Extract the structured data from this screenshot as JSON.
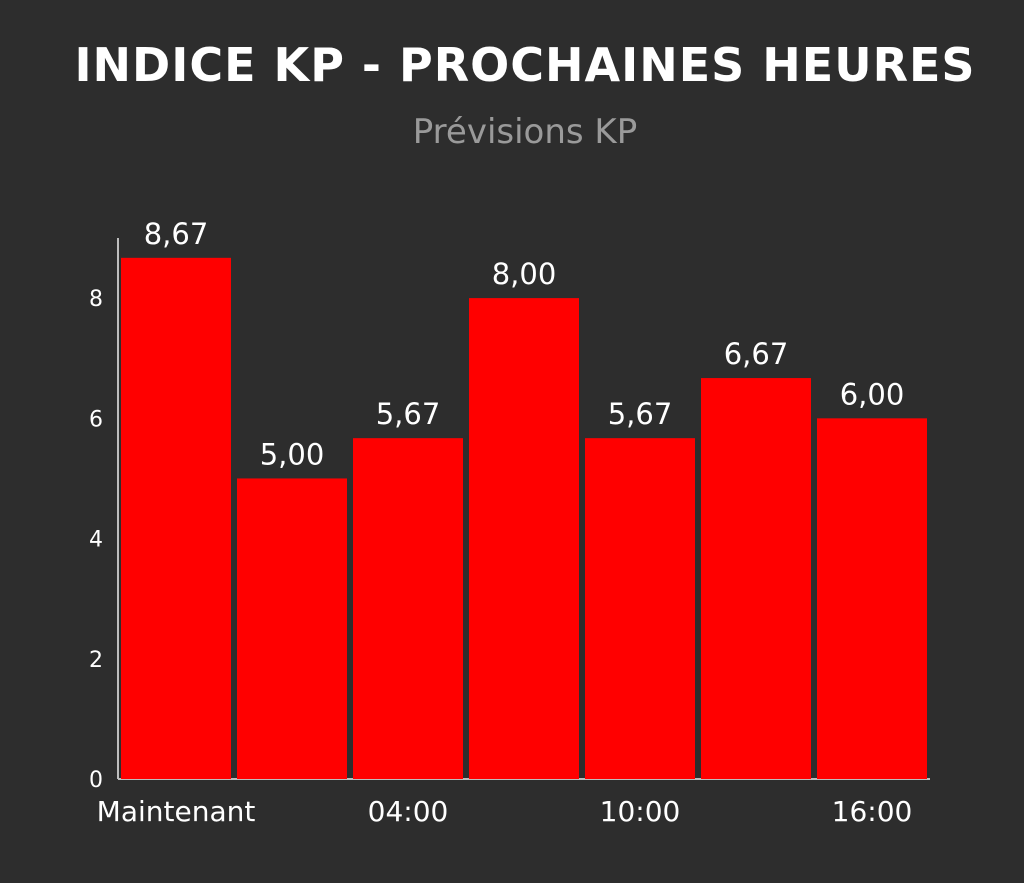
{
  "chart_data": {
    "type": "bar",
    "title": "INDICE KP - PROCHAINES HEURES",
    "subtitle": "Prévisions KP",
    "xlabel": "",
    "ylabel": "",
    "categories": [
      "Maintenant",
      "",
      "04:00",
      "",
      "10:00",
      "",
      "16:00"
    ],
    "values": [
      8.67,
      5.0,
      5.67,
      8.0,
      5.67,
      6.67,
      6.0
    ],
    "data_labels": [
      "8,67",
      "5,00",
      "5,67",
      "8,00",
      "5,67",
      "6,67",
      "6,00"
    ],
    "ylim": [
      0,
      9
    ],
    "yticks": [
      0,
      2,
      4,
      6,
      8
    ],
    "grid": false,
    "legend": "none",
    "bar_color": "#ff0000"
  }
}
